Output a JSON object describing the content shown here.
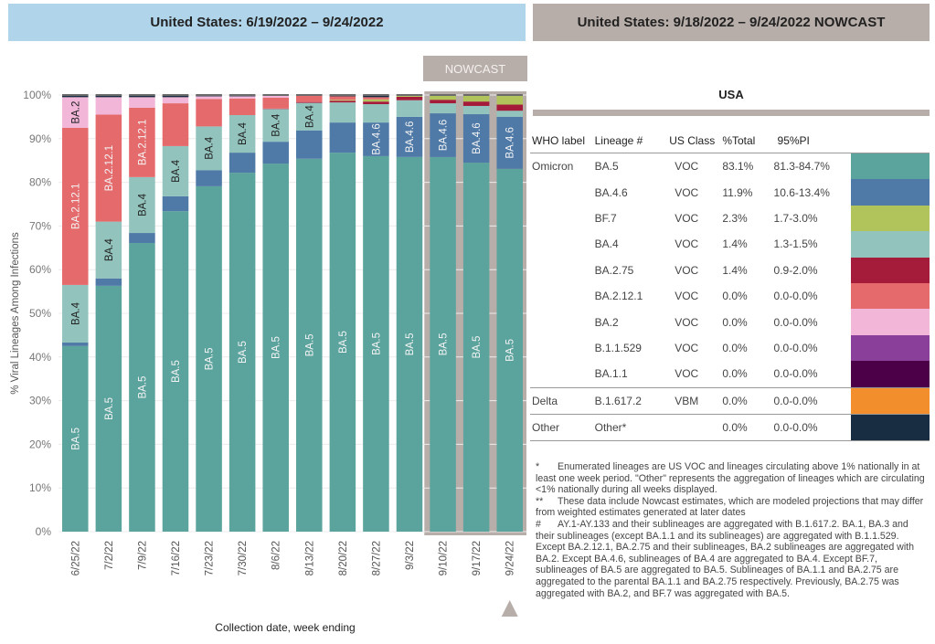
{
  "left_header": "United States: 6/19/2022 – 9/24/2022",
  "right_header": "United States: 9/18/2022 – 9/24/2022 NOWCAST",
  "nowcast_badge": "NOWCAST",
  "colors": {
    "BA.5": "#5ba39d",
    "BA.4.6": "#4f79a6",
    "BA.4": "#92c4bd",
    "BA.2.75": "#a51c3a",
    "BF.7": "#b1c45c",
    "BA.2.12.1": "#e56a6c",
    "BA.2": "#f2b6d9",
    "B.1.1.529": "#8a3f9a",
    "BA.1.1": "#4b0048",
    "B.1.617.2": "#f28e2b",
    "Other*": "#182c42",
    "nowcast_bg": "#b8aea9"
  },
  "chart_data": {
    "type": "bar",
    "stacked": true,
    "title": "United States: 6/19/2022 – 9/24/2022",
    "xlabel": "Collection date, week ending",
    "ylabel": "% Viral Lineages Among Infections",
    "ylim": [
      0,
      100
    ],
    "yticks": [
      "0%",
      "10%",
      "20%",
      "30%",
      "40%",
      "50%",
      "60%",
      "70%",
      "80%",
      "90%",
      "100%"
    ],
    "grid": true,
    "categories": [
      "6/25/22",
      "7/2/22",
      "7/9/22",
      "7/16/22",
      "7/23/22",
      "7/30/22",
      "8/6/22",
      "8/13/22",
      "8/20/22",
      "8/27/22",
      "9/3/22",
      "9/10/22",
      "9/17/22",
      "9/24/22"
    ],
    "nowcast_categories": [
      "9/10/22",
      "9/17/22",
      "9/24/22"
    ],
    "series": [
      {
        "name": "BA.5",
        "values": [
          42.5,
          56.3,
          66.1,
          73.4,
          79.1,
          82.2,
          84.3,
          85.4,
          86.8,
          86.0,
          85.8,
          85.8,
          84.5,
          83.1
        ]
      },
      {
        "name": "BA.4.6",
        "values": [
          0.8,
          1.7,
          2.3,
          3.4,
          3.7,
          4.6,
          5.0,
          6.5,
          6.9,
          7.7,
          9.2,
          10.0,
          11.1,
          11.9
        ]
      },
      {
        "name": "BA.4",
        "values": [
          13.2,
          13.0,
          12.8,
          11.5,
          10.0,
          8.6,
          7.5,
          6.3,
          4.6,
          4.2,
          3.8,
          2.3,
          1.9,
          1.4
        ]
      },
      {
        "name": "BA.2.75",
        "values": [
          0,
          0,
          0,
          0,
          0,
          0,
          0.1,
          0.2,
          0.4,
          0.6,
          0.8,
          0.8,
          1.0,
          1.4
        ]
      },
      {
        "name": "BF.7",
        "values": [
          0,
          0,
          0,
          0,
          0,
          0,
          0,
          0,
          0.2,
          0.5,
          0.4,
          1.0,
          1.5,
          2.3
        ]
      },
      {
        "name": "BA.2.12.1",
        "values": [
          36.0,
          24.5,
          15.9,
          9.8,
          6.3,
          3.8,
          2.5,
          1.5,
          0.8,
          0.5,
          0,
          0,
          0,
          0
        ]
      },
      {
        "name": "BA.2",
        "values": [
          7.0,
          4.0,
          2.4,
          1.4,
          0.6,
          0.5,
          0.4,
          0.1,
          0,
          0,
          0,
          0,
          0,
          0
        ]
      },
      {
        "name": "Other*",
        "values": [
          0.5,
          0.5,
          0.5,
          0.5,
          0.3,
          0.3,
          0.2,
          0.0,
          0.3,
          0.5,
          0,
          0.1,
          0,
          0
        ]
      }
    ],
    "bar_labels": [
      {
        "bar": "6/25/22",
        "series": "BA.5",
        "text": "BA.5"
      },
      {
        "bar": "6/25/22",
        "series": "BA.4",
        "text": "BA.4"
      },
      {
        "bar": "6/25/22",
        "series": "BA.2.12.1",
        "text": "BA.2.12.1"
      },
      {
        "bar": "6/25/22",
        "series": "BA.2",
        "text": "BA.2"
      },
      {
        "bar": "7/2/22",
        "series": "BA.5",
        "text": "BA.5"
      },
      {
        "bar": "7/2/22",
        "series": "BA.4",
        "text": "BA.4"
      },
      {
        "bar": "7/2/22",
        "series": "BA.2.12.1",
        "text": "BA.2.12.1"
      },
      {
        "bar": "7/9/22",
        "series": "BA.5",
        "text": "BA.5"
      },
      {
        "bar": "7/9/22",
        "series": "BA.4",
        "text": "BA.4"
      },
      {
        "bar": "7/9/22",
        "series": "BA.2.12.1",
        "text": "BA.2.12.1"
      },
      {
        "bar": "7/16/22",
        "series": "BA.5",
        "text": "BA.5"
      },
      {
        "bar": "7/16/22",
        "series": "BA.4",
        "text": "BA.4"
      },
      {
        "bar": "7/23/22",
        "series": "BA.5",
        "text": "BA.5"
      },
      {
        "bar": "7/23/22",
        "series": "BA.4",
        "text": "BA.4"
      },
      {
        "bar": "7/30/22",
        "series": "BA.5",
        "text": "BA.5"
      },
      {
        "bar": "7/30/22",
        "series": "BA.4",
        "text": "BA.4"
      },
      {
        "bar": "8/6/22",
        "series": "BA.5",
        "text": "BA.5"
      },
      {
        "bar": "8/6/22",
        "series": "BA.4",
        "text": "BA.4"
      },
      {
        "bar": "8/13/22",
        "series": "BA.5",
        "text": "BA.5"
      },
      {
        "bar": "8/13/22",
        "series": "BA.4",
        "text": "BA.4"
      },
      {
        "bar": "8/20/22",
        "series": "BA.5",
        "text": "BA.5"
      },
      {
        "bar": "8/27/22",
        "series": "BA.5",
        "text": "BA.5"
      },
      {
        "bar": "8/27/22",
        "series": "BA.4.6",
        "text": "BA.4.6"
      },
      {
        "bar": "9/3/22",
        "series": "BA.5",
        "text": "BA.5"
      },
      {
        "bar": "9/3/22",
        "series": "BA.4.6",
        "text": "BA.4.6"
      },
      {
        "bar": "9/10/22",
        "series": "BA.5",
        "text": "BA.5"
      },
      {
        "bar": "9/10/22",
        "series": "BA.4.6",
        "text": "BA.4.6"
      },
      {
        "bar": "9/17/22",
        "series": "BA.5",
        "text": "BA.5"
      },
      {
        "bar": "9/17/22",
        "series": "BA.4.6",
        "text": "BA.4.6"
      },
      {
        "bar": "9/24/22",
        "series": "BA.5",
        "text": "BA.5"
      },
      {
        "bar": "9/24/22",
        "series": "BA.4.6",
        "text": "BA.4.6"
      }
    ]
  },
  "table": {
    "title": "USA",
    "headers": [
      "WHO label",
      "Lineage #",
      "US Class",
      "%Total",
      "95%PI"
    ],
    "rows": [
      {
        "who": "Omicron",
        "lineage": "BA.5",
        "class": "VOC",
        "total": "83.1%",
        "pi": "81.3-84.7%"
      },
      {
        "who": "",
        "lineage": "BA.4.6",
        "class": "VOC",
        "total": "11.9%",
        "pi": "10.6-13.4%"
      },
      {
        "who": "",
        "lineage": "BF.7",
        "class": "VOC",
        "total": "2.3%",
        "pi": "1.7-3.0%"
      },
      {
        "who": "",
        "lineage": "BA.4",
        "class": "VOC",
        "total": "1.4%",
        "pi": "1.3-1.5%"
      },
      {
        "who": "",
        "lineage": "BA.2.75",
        "class": "VOC",
        "total": "1.4%",
        "pi": "0.9-2.0%"
      },
      {
        "who": "",
        "lineage": "BA.2.12.1",
        "class": "VOC",
        "total": "0.0%",
        "pi": "0.0-0.0%"
      },
      {
        "who": "",
        "lineage": "BA.2",
        "class": "VOC",
        "total": "0.0%",
        "pi": "0.0-0.0%"
      },
      {
        "who": "",
        "lineage": "B.1.1.529",
        "class": "VOC",
        "total": "0.0%",
        "pi": "0.0-0.0%"
      },
      {
        "who": "",
        "lineage": "BA.1.1",
        "class": "VOC",
        "total": "0.0%",
        "pi": "0.0-0.0%"
      },
      {
        "who": "Delta",
        "lineage": "B.1.617.2",
        "class": "VBM",
        "total": "0.0%",
        "pi": "0.0-0.0%"
      },
      {
        "who": "Other",
        "lineage": "Other*",
        "class": "",
        "total": "0.0%",
        "pi": "0.0-0.0%"
      }
    ]
  },
  "notes": [
    {
      "mark": "*",
      "text": "Enumerated lineages are US VOC and lineages circulating above 1% nationally in at least one week period. \"Other\" represents the aggregation of lineages which are circulating <1% nationally during all weeks displayed."
    },
    {
      "mark": "**",
      "text": "These data include Nowcast estimates, which are modeled projections that may differ from weighted estimates generated at later dates"
    },
    {
      "mark": "#",
      "text": "AY.1-AY.133 and their sublineages are aggregated with B.1.617.2. BA.1, BA.3 and their sublineages (except BA.1.1 and its sublineages) are aggregated with B.1.1.529. Except BA.2.12.1, BA.2.75 and their sublineages, BA.2 sublineages are aggregated with BA.2. Except BA.4.6, sublineages of BA.4 are aggregated to BA.4. Except BF.7, sublineages of BA.5 are aggregated to BA.5. Sublineages of BA.1.1 and BA.2.75 are aggregated to the parental BA.1.1 and BA.2.75 respectively. Previously, BA.2.75 was aggregated with BA.2, and BF.7 was aggregated with BA.5."
    }
  ]
}
